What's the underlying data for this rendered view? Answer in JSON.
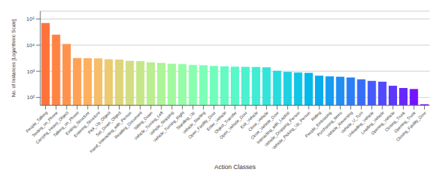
{
  "chart_data": {
    "type": "bar",
    "xlabel": "Action Classes",
    "ylabel": "No. of Instances [Logarithmic Scale]",
    "categories": [
      "People_Talking",
      "Texting_on_Phone",
      "Carrying_Heavy_Object",
      "Talking_on_Phone",
      "Exiting_Structure",
      "Entering_Structure",
      "Pick_Up_Object",
      "Set_Down_Object",
      "Hand_Interacting_with_Person",
      "Reading_Document",
      "Sitting_Down",
      "Vehicle_Turning_Left",
      "Vehicle_Stopping",
      "Vehicle_Turning_Right",
      "Standing_Up",
      "Vehicle_Starting",
      "Open_Facility_Door",
      "Enter_Vehicle",
      "Object_Transfer",
      "Open_Vehicle_Door",
      "Exit_Vehicle",
      "Close_Vehicle",
      "Close_Vehicle_Door",
      "Interacting_with_Laptop",
      "Vehicle_Dropping_Person",
      "Vehicle_Picking_Up_Person",
      "Riding",
      "People_Embracing",
      "Purchasing_Items",
      "Vehicle_Reversing",
      "Vehicle_U_Turn",
      "Unloading_Vehicle",
      "Loading_Vehicle",
      "Opening_Vehicle",
      "Closing_Trunk",
      "Opening_Trunk",
      "Closing_Facility_Door"
    ],
    "values": [
      70000,
      25000,
      11000,
      3200,
      3150,
      3100,
      2900,
      2800,
      2500,
      2450,
      2200,
      2100,
      1950,
      1900,
      1750,
      1700,
      1600,
      1550,
      1500,
      1480,
      1460,
      1420,
      1050,
      950,
      900,
      870,
      680,
      640,
      620,
      580,
      490,
      430,
      400,
      280,
      230,
      210,
      55
    ],
    "colors": [
      "#ff733b",
      "#ff8444",
      "#ff934d",
      "#ffa256",
      "#ffb05f",
      "#f6be68",
      "#ebca70",
      "#ded479",
      "#d2de81",
      "#c6e789",
      "#baee91",
      "#aef498",
      "#a2f9a0",
      "#96fca7",
      "#88ffaf",
      "#7cffb6",
      "#70febc",
      "#64fbc3",
      "#58f8c9",
      "#4cf2ce",
      "#3fecd4",
      "#34e4d9",
      "#28dbde",
      "#1cd1e2",
      "#10c6e6",
      "#04b9ea",
      "#08acee",
      "#149df1",
      "#208ef4",
      "#2c7ef6",
      "#386df9",
      "#445cfb",
      "#504afc",
      "#5c38fd",
      "#6826fe",
      "#7413ff",
      "#8000ff"
    ],
    "log": "y",
    "ylim": [
      50,
      200000
    ],
    "yticks": [
      {
        "value": 100,
        "label": "10²"
      },
      {
        "value": 1000,
        "label": "10³"
      },
      {
        "value": 10000,
        "label": "10⁴"
      },
      {
        "value": 100000,
        "label": "10⁵"
      }
    ],
    "grid": true
  }
}
